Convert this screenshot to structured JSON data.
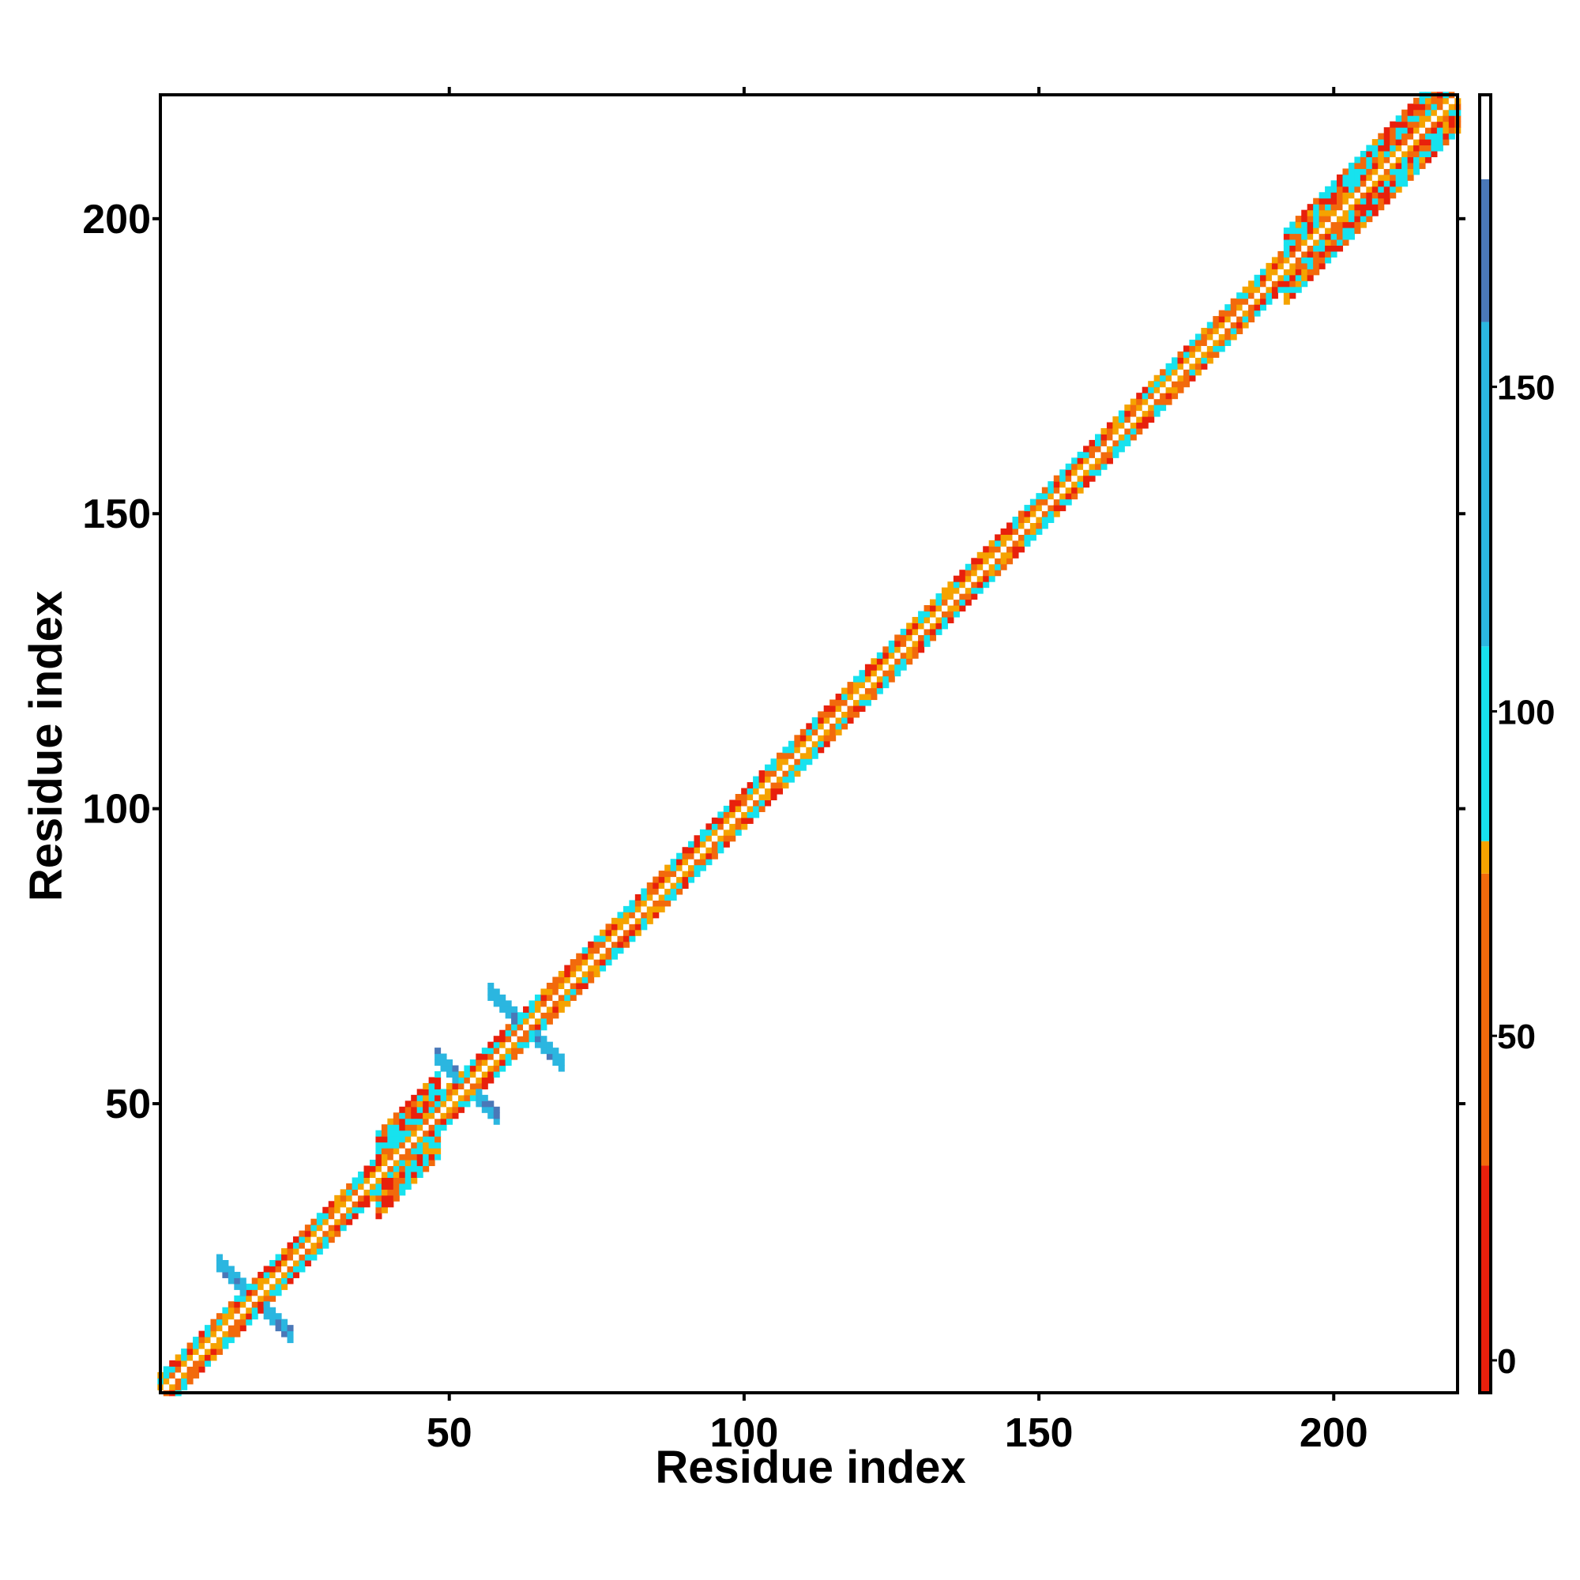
{
  "chart_data": {
    "type": "heatmap",
    "title": "",
    "xlabel": "Residue index",
    "ylabel": "Residue index",
    "xlim": [
      1,
      221
    ],
    "ylim": [
      1,
      221
    ],
    "xticks": [
      50,
      100,
      150,
      200
    ],
    "yticks": [
      50,
      100,
      150,
      200
    ],
    "grid": false,
    "colorbar": {
      "ticks": [
        0,
        50,
        100,
        150
      ],
      "range": [
        -5,
        195
      ],
      "bands": [
        {
          "from": -5,
          "to": 30,
          "color": "#e8200c"
        },
        {
          "from": 30,
          "to": 75,
          "color": "#f26a0c"
        },
        {
          "from": 75,
          "to": 80,
          "color": "#f5a300"
        },
        {
          "from": 80,
          "to": 110,
          "color": "#17e2ee"
        },
        {
          "from": 110,
          "to": 160,
          "color": "#2bb6e0"
        },
        {
          "from": 160,
          "to": 182,
          "color": "#4a78b8"
        },
        {
          "from": 182,
          "to": 195,
          "color": "#ffffff"
        }
      ]
    },
    "diagonal": {
      "residue_count": 221,
      "main_diagonal_value": 190,
      "band_halfwidth": 3,
      "note_values": "cells with |i-j|<=halfwidth take values from the colorbar scale; off-band cells are empty"
    },
    "features": [
      {
        "center": 17,
        "value": 150,
        "extent": 6
      },
      {
        "center": 53,
        "value": 140,
        "extent": 5
      },
      {
        "center": 63,
        "value": 140,
        "extent": 6
      }
    ],
    "wide_segments": [
      {
        "from": 38,
        "to": 48,
        "halfwidth": 7
      },
      {
        "from": 192,
        "to": 221,
        "halfwidth": 6
      }
    ]
  }
}
